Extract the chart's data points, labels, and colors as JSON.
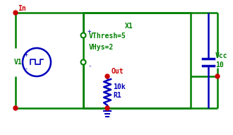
{
  "bg_color": "#ffffff",
  "wire_color": "#008000",
  "component_color": "#0000bb",
  "dot_color": "#cc0000",
  "label_color": "#008000",
  "V1_label": "V1",
  "V1_plus": "+",
  "V1_minus": "-",
  "X1_label": "X1",
  "X1_plus": "+",
  "X1_minus": "-",
  "R1_label": "R1",
  "R1_value": "10k",
  "Vcc_label": "Vcc",
  "Vcc_value": "10",
  "In_label": "In",
  "Out_label": "Out",
  "param1": "VThresh=5",
  "param2": "VHys=2",
  "figsize": [
    3.3,
    1.91
  ],
  "dpi": 100
}
